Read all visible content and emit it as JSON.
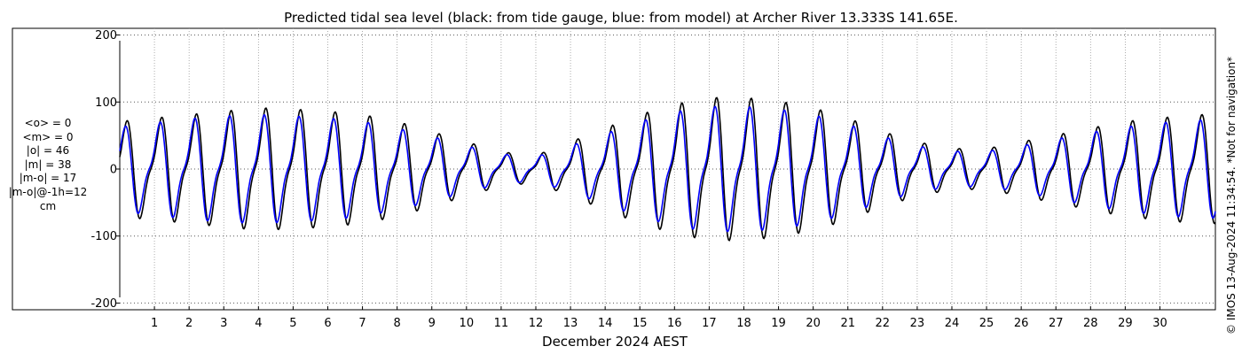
{
  "chart_data": {
    "type": "line",
    "title": "Predicted tidal sea level (black: from tide gauge, blue: from model) at Archer River 13.333S 141.65E.",
    "xlabel": "December 2024 AEST",
    "ylabel": "",
    "xlim": [
      0.0,
      31.6
    ],
    "ylim": [
      -210,
      210
    ],
    "x_ticks": [
      "1",
      "2",
      "3",
      "4",
      "5",
      "6",
      "7",
      "8",
      "9",
      "10",
      "11",
      "12",
      "13",
      "14",
      "15",
      "16",
      "17",
      "18",
      "19",
      "20",
      "21",
      "22",
      "23",
      "24",
      "25",
      "26",
      "27",
      "28",
      "29",
      "30"
    ],
    "y_ticks": [
      200,
      100,
      0,
      -100,
      -200
    ],
    "grid": true,
    "colors": {
      "gauge": "#000000",
      "model": "#0000ff",
      "grid": "#888888"
    },
    "daily_amplitude": {
      "gauge": [
        70,
        75,
        80,
        85,
        90,
        88,
        85,
        80,
        70,
        55,
        40,
        25,
        20,
        40,
        60,
        80,
        95,
        105,
        105,
        100,
        90,
        75,
        55,
        40,
        30,
        30,
        40,
        50,
        60,
        70,
        75,
        80
      ],
      "model": [
        62,
        68,
        74,
        78,
        80,
        78,
        75,
        70,
        60,
        48,
        34,
        22,
        18,
        34,
        52,
        70,
        84,
        92,
        92,
        88,
        80,
        66,
        48,
        34,
        26,
        26,
        34,
        44,
        54,
        62,
        68,
        72
      ]
    },
    "series": [
      {
        "name": "tide gauge",
        "color": "#000000"
      },
      {
        "name": "model",
        "color": "#0000ff"
      }
    ]
  },
  "stats": {
    "mean_o": "<o> = 0",
    "mean_m": "<m> = 0",
    "abs_o": "|o| = 46",
    "abs_m": "|m| = 38",
    "abs_diff": "|m-o| = 17",
    "abs_diff_lag": "|m-o|@-1h=12",
    "unit": "cm"
  },
  "side_note": "© IMOS 13-Aug-2024 11:34:54. *Not for navigation*"
}
